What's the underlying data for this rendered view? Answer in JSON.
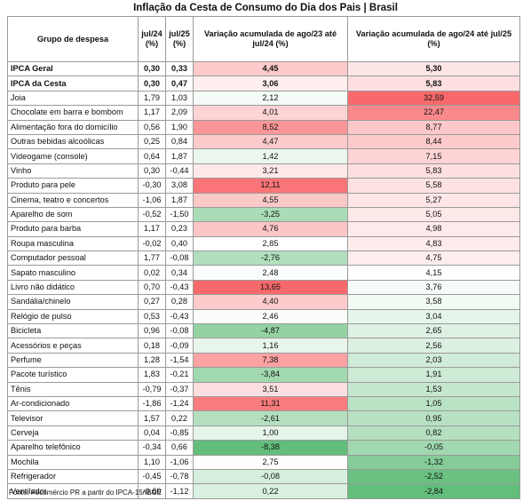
{
  "title": "Inflação da Cesta de Consumo do Dia dos Pais | Brasil",
  "columns": {
    "group": "Grupo de despesa",
    "jul24": "jul/24 (%)",
    "jul25": "jul/25 (%)",
    "acc24": "Variação acumulada de ago/23 até jul/24 (%)",
    "acc25": "Variação acumulada de ago/24 até jul/25 (%)"
  },
  "colors": {
    "green_strong": "#63be7b",
    "green_mid": "#9fd6aa",
    "green_light": "#d7eddb",
    "neutral": "#ffffff",
    "red_light": "#fbdcdc",
    "red_mid": "#f8b7b7",
    "red_strong": "#f8696b"
  },
  "rows": [
    {
      "name": "IPCA Geral",
      "jul24": "0,30",
      "jul25": "0,33",
      "acc24": "4,45",
      "acc25": "5,30",
      "bold": true
    },
    {
      "name": "IPCA da Cesta",
      "jul24": "0,30",
      "jul25": "0,47",
      "acc24": "3,06",
      "acc25": "5,83",
      "bold": true
    },
    {
      "name": "Joia",
      "jul24": "1,79",
      "jul25": "1,03",
      "acc24": "2,12",
      "acc25": "32,59"
    },
    {
      "name": "Chocolate em barra e bombom",
      "jul24": "1,17",
      "jul25": "2,09",
      "acc24": "4,01",
      "acc25": "22,47"
    },
    {
      "name": "Alimentação fora do domicílio",
      "jul24": "0,56",
      "jul25": "1,90",
      "acc24": "8,52",
      "acc25": "8,77"
    },
    {
      "name": "Outras bebidas alcoólicas",
      "jul24": "0,25",
      "jul25": "0,84",
      "acc24": "4,47",
      "acc25": "8,44"
    },
    {
      "name": "Videogame (console)",
      "jul24": "0,64",
      "jul25": "1,87",
      "acc24": "1,42",
      "acc25": "7,15"
    },
    {
      "name": "Vinho",
      "jul24": "0,30",
      "jul25": "-0,44",
      "acc24": "3,21",
      "acc25": "5,83"
    },
    {
      "name": "Produto para pele",
      "jul24": "-0,30",
      "jul25": "3,08",
      "acc24": "12,11",
      "acc25": "5,58"
    },
    {
      "name": "Cinema, teatro e concertos",
      "jul24": "-1,06",
      "jul25": "1,87",
      "acc24": "4,55",
      "acc25": "5,27"
    },
    {
      "name": "Aparelho de som",
      "jul24": "-0,52",
      "jul25": "-1,50",
      "acc24": "-3,25",
      "acc25": "5,05"
    },
    {
      "name": "Produto para barba",
      "jul24": "1,17",
      "jul25": "0,23",
      "acc24": "4,76",
      "acc25": "4,98"
    },
    {
      "name": "Roupa masculina",
      "jul24": "-0,02",
      "jul25": "0,40",
      "acc24": "2,85",
      "acc25": "4,83"
    },
    {
      "name": "Computador pessoal",
      "jul24": "1,77",
      "jul25": "-0,08",
      "acc24": "-2,76",
      "acc25": "4,75"
    },
    {
      "name": "Sapato masculino",
      "jul24": "0,02",
      "jul25": "0,34",
      "acc24": "2,48",
      "acc25": "4,15"
    },
    {
      "name": "Livro não didático",
      "jul24": "0,70",
      "jul25": "-0,43",
      "acc24": "13,65",
      "acc25": "3,76"
    },
    {
      "name": "Sandália/chinelo",
      "jul24": "0,27",
      "jul25": "0,28",
      "acc24": "4,40",
      "acc25": "3,58"
    },
    {
      "name": "Relógio de pulso",
      "jul24": "0,53",
      "jul25": "-0,43",
      "acc24": "2,46",
      "acc25": "3,04"
    },
    {
      "name": "Bicicleta",
      "jul24": "0,96",
      "jul25": "-0,08",
      "acc24": "-4,87",
      "acc25": "2,65"
    },
    {
      "name": "Acessórios e peças",
      "jul24": "0,18",
      "jul25": "-0,09",
      "acc24": "1,16",
      "acc25": "2,56"
    },
    {
      "name": "Perfume",
      "jul24": "1,28",
      "jul25": "-1,54",
      "acc24": "7,38",
      "acc25": "2,03"
    },
    {
      "name": "Pacote turístico",
      "jul24": "1,83",
      "jul25": "-0,21",
      "acc24": "-3,84",
      "acc25": "1,91"
    },
    {
      "name": "Tênis",
      "jul24": "-0,79",
      "jul25": "-0,37",
      "acc24": "3,51",
      "acc25": "1,53"
    },
    {
      "name": "Ar-condicionado",
      "jul24": "-1,86",
      "jul25": "-1,24",
      "acc24": "11,31",
      "acc25": "1,05"
    },
    {
      "name": "Televisor",
      "jul24": "1,57",
      "jul25": "0,22",
      "acc24": "-2,61",
      "acc25": "0,95"
    },
    {
      "name": "Cerveja",
      "jul24": "0,04",
      "jul25": "-0,85",
      "acc24": "1,00",
      "acc25": "0,82"
    },
    {
      "name": "Aparelho telefônico",
      "jul24": "-0,34",
      "jul25": "0,66",
      "acc24": "-8,38",
      "acc25": "-0,05"
    },
    {
      "name": "Mochila",
      "jul24": "1,10",
      "jul25": "-1,06",
      "acc24": "2,75",
      "acc25": "-1,32"
    },
    {
      "name": "Refrigerador",
      "jul24": "-0,45",
      "jul25": "-0,78",
      "acc24": "-0,08",
      "acc25": "-2,52"
    },
    {
      "name": "Ventilador",
      "jul24": "-0,60",
      "jul25": "-1,12",
      "acc24": "0,22",
      "acc25": "-2,84"
    }
  ],
  "source": "Fonte: Fecomércio PR a partir do IPCA-15/IBGE"
}
